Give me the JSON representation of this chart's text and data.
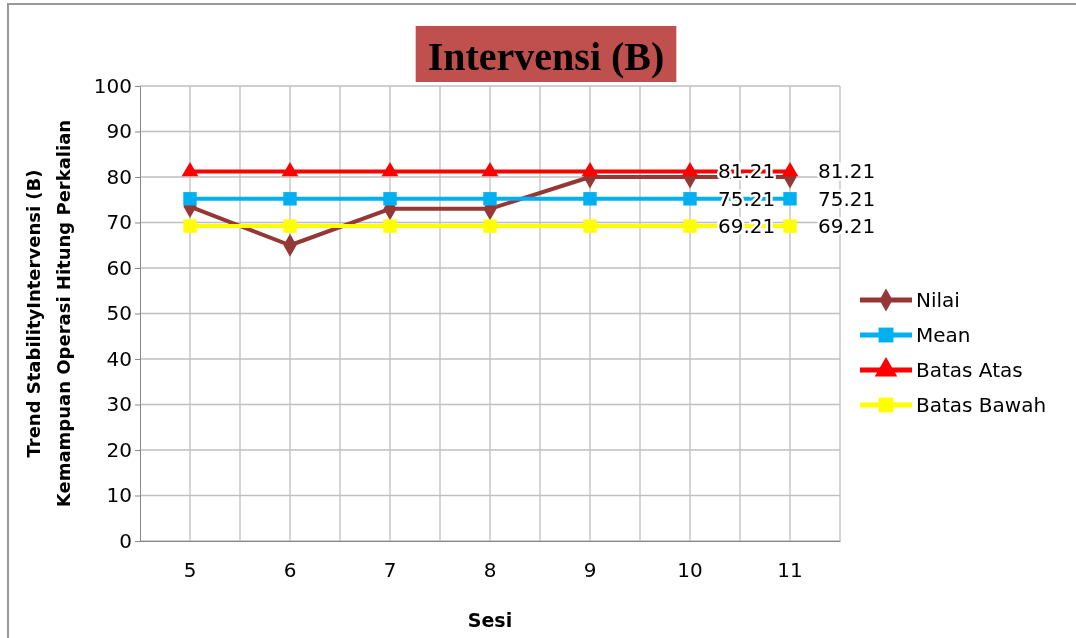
{
  "chart_data": {
    "type": "line",
    "title": "Intervensi (B)",
    "xlabel": "Sesi",
    "ylabel": "Trend StabilityIntervensi (B)\nKemampuan Operasi Hitung Perkalian",
    "categories": [
      "5",
      "6",
      "7",
      "8",
      "9",
      "10",
      "11"
    ],
    "series": [
      {
        "name": "Nilai",
        "color": "#953735",
        "marker": "diamond",
        "values": [
          73.5,
          65,
          73,
          73,
          80,
          80,
          80
        ]
      },
      {
        "name": "Mean",
        "color": "#00b0f0",
        "marker": "square",
        "values": [
          75.21,
          75.21,
          75.21,
          75.21,
          75.21,
          75.21,
          75.21
        ],
        "value_labels": [
          null,
          null,
          null,
          null,
          null,
          "75.21",
          "75.21"
        ]
      },
      {
        "name": "Batas Atas",
        "color": "#ff0000",
        "marker": "triangle",
        "values": [
          81.21,
          81.21,
          81.21,
          81.21,
          81.21,
          81.21,
          81.21
        ],
        "value_labels": [
          null,
          null,
          null,
          null,
          null,
          "81.21",
          "81.21"
        ]
      },
      {
        "name": "Batas Bawah",
        "color": "#ffff00",
        "marker": "square",
        "values": [
          69.21,
          69.21,
          69.21,
          69.21,
          69.21,
          69.21,
          69.21
        ],
        "value_labels": [
          null,
          null,
          null,
          null,
          null,
          "69.21",
          "69.21"
        ]
      }
    ],
    "ylim": [
      0,
      100
    ],
    "yticks": [
      0,
      10,
      20,
      30,
      40,
      50,
      60,
      70,
      80,
      90,
      100
    ],
    "grid": true,
    "legend": "right",
    "line_style": "solid"
  }
}
